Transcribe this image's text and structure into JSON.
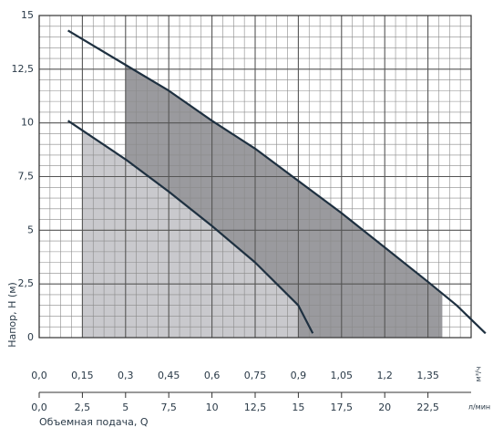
{
  "chart_data": {
    "type": "line",
    "x_label": "Объемная подача, Q",
    "y_label": "Напор, Н (м)",
    "x_unit": "м³/ч",
    "x2_unit": "л/мин",
    "xlim": [
      0,
      1.5
    ],
    "ylim": [
      0,
      15
    ],
    "xticks": [
      {
        "value": 0,
        "label": "0,0"
      },
      {
        "value": 0.15,
        "label": "0,15"
      },
      {
        "value": 0.3,
        "label": "0,3"
      },
      {
        "value": 0.45,
        "label": "0,45"
      },
      {
        "value": 0.6,
        "label": "0,6"
      },
      {
        "value": 0.75,
        "label": "0,75"
      },
      {
        "value": 0.9,
        "label": "0,9"
      },
      {
        "value": 1.05,
        "label": "1,05"
      },
      {
        "value": 1.2,
        "label": "1,2"
      },
      {
        "value": 1.35,
        "label": "1,35"
      }
    ],
    "yticks": [
      0,
      {
        "value": 2.5,
        "label": "2,5"
      },
      5,
      {
        "value": 7.5,
        "label": "7,5"
      },
      10,
      {
        "value": 12.5,
        "label": "12,5"
      },
      15
    ],
    "x2lim": [
      0,
      25
    ],
    "x2ticks": [
      {
        "value": 0,
        "label": "0,0"
      },
      {
        "value": 2.5,
        "label": "2,5"
      },
      5,
      {
        "value": 7.5,
        "label": "7,5"
      },
      10,
      {
        "value": 12.5,
        "label": "12,5"
      },
      15,
      {
        "value": 17.5,
        "label": "17,5"
      },
      20,
      {
        "value": 22.5,
        "label": "22,5"
      }
    ],
    "grid": true,
    "series": [
      {
        "color": "#1e3040",
        "x": [
          0.1,
          0.3,
          0.45,
          0.6,
          0.75,
          0.9,
          1.05,
          1.2,
          1.35,
          1.45,
          1.55
        ],
        "values": [
          14.3,
          12.7,
          11.5,
          10.1,
          8.8,
          7.3,
          5.8,
          4.2,
          2.6,
          1.5,
          0.2
        ]
      },
      {
        "color": "#1e3040",
        "x": [
          0.1,
          0.3,
          0.45,
          0.6,
          0.75,
          0.9,
          0.95
        ],
        "values": [
          10.1,
          8.3,
          6.8,
          5.2,
          3.5,
          1.5,
          0.2
        ]
      }
    ],
    "regions": [
      {
        "series": 0,
        "color": "#9a9a9e",
        "from": 0.3,
        "to": 1.4
      },
      {
        "series": 1,
        "color": "#c9c9cd",
        "from": 0.15,
        "to": 0.9
      }
    ]
  }
}
